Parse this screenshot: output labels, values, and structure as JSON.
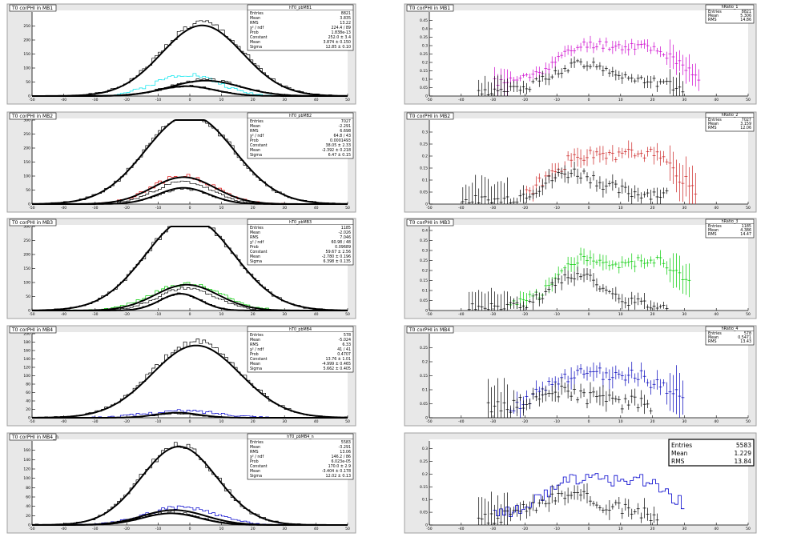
{
  "canvas": {
    "background": "#ffffff",
    "frame_color": "#e8e8e8",
    "axis_color": "#000000"
  },
  "chart_data": [
    {
      "type": "line",
      "title": "T0 corPHI in MB1",
      "hist_name": "hT0_pbMB1",
      "xlim": [
        -50,
        50
      ],
      "ylim": [
        0,
        300
      ],
      "x_ticks": [
        -50,
        -40,
        -30,
        -20,
        -10,
        0,
        10,
        20,
        30,
        40,
        50
      ],
      "y_ticks": [
        0,
        50,
        100,
        150,
        200,
        250
      ],
      "stats": [
        {
          "label": "Entries",
          "value": "8821"
        },
        {
          "label": "Mean",
          "value": "3.835"
        },
        {
          "label": "RMS",
          "value": "13.22"
        },
        {
          "label": "χ² / ndf",
          "value": "224.4 / 89"
        },
        {
          "label": "Prob",
          "value": "1.838e-13"
        },
        {
          "label": "Constant",
          "value": "252.0 ± 3.4"
        },
        {
          "label": "Mean",
          "value": "3.874 ± 0.150"
        },
        {
          "label": "Sigma",
          "value": "12.85 ± 0.10"
        }
      ],
      "series": [
        {
          "kind": "gauss",
          "color": "#000000",
          "amp": 262,
          "mean": 3.9,
          "sigma": 12.9,
          "noise": 12,
          "seed": 1
        },
        {
          "kind": "gauss",
          "color": "#00e5ee",
          "amp": 78,
          "mean": -1,
          "sigma": 10,
          "noise": 8,
          "seed": 2
        },
        {
          "kind": "gauss",
          "color": "#000000",
          "amp": 58,
          "mean": 5,
          "sigma": 11,
          "noise": 5,
          "seed": 3
        },
        {
          "kind": "gauss",
          "color": "#000000",
          "amp": 36,
          "mean": -1,
          "sigma": 9,
          "noise": 4,
          "seed": 4
        }
      ],
      "fits": [
        {
          "amp": 252,
          "mean": 3.9,
          "sigma": 12.85
        },
        {
          "amp": 55,
          "mean": 5,
          "sigma": 11
        },
        {
          "amp": 35,
          "mean": -1,
          "sigma": 9
        }
      ]
    },
    {
      "type": "scatter",
      "title": "T0 corPHI in MB1",
      "hist_name": "hRatio_1",
      "xlim": [
        -50,
        50
      ],
      "ylim": [
        0,
        0.5
      ],
      "x_ticks": [
        -50,
        -40,
        -30,
        -20,
        -10,
        0,
        10,
        20,
        30,
        40,
        50
      ],
      "y_ticks": [
        0,
        0.05,
        0.1,
        0.15,
        0.2,
        0.25,
        0.3,
        0.35,
        0.4,
        0.45
      ],
      "stats": [
        {
          "label": "Entries",
          "value": "8821"
        },
        {
          "label": "Mean",
          "value": "5.306"
        },
        {
          "label": "RMS",
          "value": "14.86"
        }
      ],
      "series": [
        {
          "kind": "ratio",
          "color": "#cc00cc",
          "base": 0.2,
          "amp": 0.22,
          "mean": 0,
          "sigma": 10,
          "second": 0.18,
          "smean": 20,
          "ssigma": 8,
          "range": [
            -30,
            35
          ],
          "seed": 11
        },
        {
          "kind": "ratio",
          "color": "#000000",
          "base": 0.05,
          "amp": 0.17,
          "mean": -2,
          "sigma": 10,
          "second": 0.05,
          "smean": 20,
          "ssigma": 8,
          "range": [
            -35,
            30
          ],
          "seed": 12
        }
      ]
    },
    {
      "type": "line",
      "title": "T0 corPHI in MB2",
      "hist_name": "hT0_pbMB2",
      "xlim": [
        -50,
        50
      ],
      "ylim": [
        0,
        300
      ],
      "x_ticks": [
        -50,
        -40,
        -30,
        -20,
        -10,
        0,
        10,
        20,
        30,
        40,
        50
      ],
      "y_ticks": [
        0,
        50,
        100,
        150,
        200,
        250,
        300
      ],
      "stats": [
        {
          "label": "Entries",
          "value": "7027"
        },
        {
          "label": "Mean",
          "value": "-2.291"
        },
        {
          "label": "RMS",
          "value": "6.698"
        },
        {
          "label": "χ² / ndf",
          "value": "64.8 / 43"
        },
        {
          "label": "Prob",
          "value": "0.0001493"
        },
        {
          "label": "Constant",
          "value": "38.05 ± 2.33"
        },
        {
          "label": "Mean",
          "value": "-2.392 ± 0.218"
        },
        {
          "label": "Sigma",
          "value": "6.47 ± 0.15"
        }
      ],
      "series": [
        {
          "kind": "gauss",
          "color": "#000000",
          "amp": 320,
          "mean": 0,
          "sigma": 14,
          "noise": 12,
          "seed": 21
        },
        {
          "kind": "gauss",
          "color": "#dd0000",
          "amp": 100,
          "mean": -2,
          "sigma": 10,
          "noise": 8,
          "seed": 22
        },
        {
          "kind": "gauss",
          "color": "#000000",
          "amp": 80,
          "mean": -2,
          "sigma": 9,
          "noise": 5,
          "seed": 23
        },
        {
          "kind": "gauss",
          "color": "#000000",
          "amp": 55,
          "mean": -2,
          "sigma": 8,
          "noise": 4,
          "seed": 24
        }
      ],
      "fits": [
        {
          "amp": 318,
          "mean": 0,
          "sigma": 14
        },
        {
          "amp": 96,
          "mean": -2,
          "sigma": 10
        },
        {
          "amp": 58,
          "mean": -2,
          "sigma": 8
        }
      ]
    },
    {
      "type": "scatter",
      "title": "T0 corPHI in MB2",
      "hist_name": "hRatio_2",
      "xlim": [
        -50,
        50
      ],
      "ylim": [
        0,
        0.35
      ],
      "x_ticks": [
        -50,
        -40,
        -30,
        -20,
        -10,
        0,
        10,
        20,
        30,
        40,
        50
      ],
      "y_ticks": [
        0,
        0.05,
        0.1,
        0.15,
        0.2,
        0.25,
        0.3
      ],
      "stats": [
        {
          "label": "Entries",
          "value": "7027"
        },
        {
          "label": "Mean",
          "value": "3.159"
        },
        {
          "label": "RMS",
          "value": "12.06"
        }
      ],
      "series": [
        {
          "kind": "ratio",
          "color": "#cc2222",
          "base": 0.06,
          "amp": 0.16,
          "mean": -3,
          "sigma": 9,
          "second": 0.18,
          "smean": 18,
          "ssigma": 9,
          "range": [
            -20,
            34
          ],
          "seed": 31
        },
        {
          "kind": "ratio",
          "color": "#000000",
          "base": 0.03,
          "amp": 0.12,
          "mean": -5,
          "sigma": 9,
          "second": 0.03,
          "smean": 20,
          "ssigma": 8,
          "range": [
            -40,
            25
          ],
          "seed": 32
        }
      ]
    },
    {
      "type": "line",
      "title": "T0 corPHI in MB3",
      "hist_name": "hT0_pbMB3",
      "xlim": [
        -50,
        50
      ],
      "ylim": [
        0,
        300
      ],
      "x_ticks": [
        -50,
        -40,
        -30,
        -20,
        -10,
        0,
        10,
        20,
        30,
        40,
        50
      ],
      "y_ticks": [
        0,
        50,
        100,
        150,
        200,
        250,
        300
      ],
      "stats": [
        {
          "label": "Entries",
          "value": "1185"
        },
        {
          "label": "Mean",
          "value": "-2.026"
        },
        {
          "label": "RMS",
          "value": "7.046"
        },
        {
          "label": "χ² / ndf",
          "value": "60.98 / 48"
        },
        {
          "label": "Prob",
          "value": "0.09689"
        },
        {
          "label": "Constant",
          "value": "59.67 ± 2.56"
        },
        {
          "label": "Mean",
          "value": "-2.780 ± 0.196"
        },
        {
          "label": "Sigma",
          "value": "6.398 ± 0.135"
        }
      ],
      "series": [
        {
          "kind": "gauss",
          "color": "#000000",
          "amp": 330,
          "mean": 0,
          "sigma": 14,
          "noise": 12,
          "seed": 41
        },
        {
          "kind": "gauss",
          "color": "#00cc00",
          "amp": 95,
          "mean": -1,
          "sigma": 11,
          "noise": 7,
          "seed": 42
        },
        {
          "kind": "gauss",
          "color": "#000000",
          "amp": 80,
          "mean": -1,
          "sigma": 9,
          "noise": 5,
          "seed": 43
        },
        {
          "kind": "gauss",
          "color": "#000000",
          "amp": 60,
          "mean": -3,
          "sigma": 6.5,
          "noise": 4,
          "seed": 44
        }
      ],
      "fits": [
        {
          "amp": 330,
          "mean": 0,
          "sigma": 14
        },
        {
          "amp": 92,
          "mean": -1,
          "sigma": 10
        },
        {
          "amp": 60,
          "mean": -3,
          "sigma": 6.4
        }
      ]
    },
    {
      "type": "scatter",
      "title": "T0 corPHI in MB3",
      "hist_name": "hRatio_3",
      "xlim": [
        -50,
        50
      ],
      "ylim": [
        0,
        0.42
      ],
      "x_ticks": [
        -50,
        -40,
        -30,
        -20,
        -10,
        0,
        10,
        20,
        30,
        40,
        50
      ],
      "y_ticks": [
        0,
        0.05,
        0.1,
        0.15,
        0.2,
        0.25,
        0.3,
        0.35,
        0.4
      ],
      "stats": [
        {
          "label": "Entries",
          "value": "1185"
        },
        {
          "label": "Mean",
          "value": "4.386"
        },
        {
          "label": "RMS",
          "value": "14.47"
        }
      ],
      "series": [
        {
          "kind": "ratio",
          "color": "#00cc00",
          "base": 0.08,
          "amp": 0.22,
          "mean": -2,
          "sigma": 8,
          "second": 0.22,
          "smean": 20,
          "ssigma": 9,
          "range": [
            -25,
            32
          ],
          "seed": 51
        },
        {
          "kind": "ratio",
          "color": "#000000",
          "base": 0.03,
          "amp": 0.17,
          "mean": -4,
          "sigma": 8,
          "second": 0.02,
          "smean": 20,
          "ssigma": 6,
          "range": [
            -38,
            25
          ],
          "seed": 52
        }
      ]
    },
    {
      "type": "line",
      "title": "T0 corPHI in MB4",
      "hist_name": "hT0_pbMB4",
      "xlim": [
        -50,
        50
      ],
      "ylim": [
        0,
        200
      ],
      "x_ticks": [
        -50,
        -40,
        -30,
        -20,
        -10,
        0,
        10,
        20,
        30,
        40,
        50
      ],
      "y_ticks": [
        0,
        20,
        40,
        60,
        80,
        100,
        120,
        140,
        160,
        180,
        200
      ],
      "stats": [
        {
          "label": "Entries",
          "value": "578"
        },
        {
          "label": "Mean",
          "value": "-5.024"
        },
        {
          "label": "RMS",
          "value": "6.33"
        },
        {
          "label": "χ² / ndf",
          "value": "41 / 41"
        },
        {
          "label": "Prob",
          "value": "0.4707"
        },
        {
          "label": "Constant",
          "value": "13.76 ± 1.01"
        },
        {
          "label": "Mean",
          "value": "-4.999 ± 0.465"
        },
        {
          "label": "Sigma",
          "value": "5.662 ± 0.405"
        }
      ],
      "series": [
        {
          "kind": "gauss",
          "color": "#000000",
          "amp": 180,
          "mean": 2,
          "sigma": 14,
          "noise": 8,
          "seed": 61
        },
        {
          "kind": "gauss",
          "color": "#0000cc",
          "amp": 16,
          "mean": -2,
          "sigma": 12,
          "noise": 4,
          "seed": 62
        },
        {
          "kind": "gauss",
          "color": "#000000",
          "amp": 10,
          "mean": -4,
          "sigma": 7,
          "noise": 2,
          "seed": 63
        }
      ],
      "fits": [
        {
          "amp": 172,
          "mean": 2,
          "sigma": 14
        },
        {
          "amp": 12,
          "mean": -4,
          "sigma": 7
        }
      ]
    },
    {
      "type": "scatter",
      "title": "T0 corPHI in MB4",
      "hist_name": "hRatio_4",
      "xlim": [
        -50,
        50
      ],
      "ylim": [
        0,
        0.3
      ],
      "x_ticks": [
        -50,
        -40,
        -30,
        -20,
        -10,
        0,
        10,
        20,
        30,
        40,
        50
      ],
      "y_ticks": [
        0,
        0.05,
        0.1,
        0.15,
        0.2,
        0.25
      ],
      "stats": [
        {
          "label": "Entries",
          "value": "578"
        },
        {
          "label": "Mean",
          "value": "0.5471"
        },
        {
          "label": "RMS",
          "value": "13.43"
        }
      ],
      "series": [
        {
          "kind": "ratio",
          "color": "#0000bb",
          "base": 0.1,
          "amp": 0.1,
          "mean": -4,
          "sigma": 9,
          "second": 0.1,
          "smean": 15,
          "ssigma": 9,
          "range": [
            -25,
            30
          ],
          "seed": 71
        },
        {
          "kind": "ratio",
          "color": "#000000",
          "base": 0.08,
          "amp": 0.06,
          "mean": -8,
          "sigma": 9,
          "second": 0.02,
          "smean": 15,
          "ssigma": 6,
          "range": [
            -32,
            20
          ],
          "seed": 72
        }
      ]
    },
    {
      "type": "line",
      "title": "T0 corPHI in MB4_n",
      "hist_name": "hT0_pbMB4_n",
      "xlim": [
        -50,
        50
      ],
      "ylim": [
        0,
        180
      ],
      "x_ticks": [
        -50,
        -40,
        -30,
        -20,
        -10,
        0,
        10,
        20,
        30,
        40,
        50
      ],
      "y_ticks": [
        0,
        20,
        40,
        60,
        80,
        100,
        120,
        140,
        160
      ],
      "stats": [
        {
          "label": "Entries",
          "value": "5583"
        },
        {
          "label": "Mean",
          "value": "-3.291"
        },
        {
          "label": "RMS",
          "value": "13.06"
        },
        {
          "label": "χ² / ndf",
          "value": "146.2 / 86"
        },
        {
          "label": "Prob",
          "value": "6.023e-05"
        },
        {
          "label": "Constant",
          "value": "170.0 ± 2.9"
        },
        {
          "label": "Mean",
          "value": "-3.404 ± 0.178"
        },
        {
          "label": "Sigma",
          "value": "12.02 ± 0.13"
        }
      ],
      "series": [
        {
          "kind": "gauss",
          "color": "#000000",
          "amp": 170,
          "mean": -3.4,
          "sigma": 12,
          "noise": 8,
          "seed": 81
        },
        {
          "kind": "gauss",
          "color": "#0000cc",
          "amp": 38,
          "mean": -3,
          "sigma": 11,
          "noise": 4,
          "seed": 82
        },
        {
          "kind": "gauss",
          "color": "#000000",
          "amp": 28,
          "mean": -6,
          "sigma": 9,
          "noise": 3,
          "seed": 83
        }
      ],
      "fits": [
        {
          "amp": 168,
          "mean": -3.4,
          "sigma": 12
        },
        {
          "amp": 32,
          "mean": -5,
          "sigma": 10
        },
        {
          "amp": 25,
          "mean": -6,
          "sigma": 9
        }
      ]
    },
    {
      "type": "scatter",
      "title": "",
      "hist_name": "",
      "xlim": [
        -50,
        50
      ],
      "ylim": [
        0,
        0.33
      ],
      "x_ticks": [
        -50,
        -40,
        -30,
        -20,
        -10,
        0,
        10,
        20,
        30,
        40,
        50
      ],
      "y_ticks": [
        0,
        0.05,
        0.1,
        0.15,
        0.2,
        0.25,
        0.3
      ],
      "stats": [
        {
          "label": "Entries",
          "value": "5583"
        },
        {
          "label": "Mean",
          "value": "1.229"
        },
        {
          "label": "RMS",
          "value": "13.84"
        }
      ],
      "series": [
        {
          "kind": "steps",
          "color": "#0000cc",
          "base": 0.1,
          "amp": 0.14,
          "mean": -3,
          "sigma": 10,
          "second": 0.12,
          "smean": 18,
          "ssigma": 8,
          "range": [
            -30,
            30
          ],
          "seed": 91
        },
        {
          "kind": "ratio",
          "color": "#000000",
          "base": 0.05,
          "amp": 0.1,
          "mean": -6,
          "sigma": 10,
          "second": 0.02,
          "smean": 15,
          "ssigma": 6,
          "range": [
            -35,
            22
          ],
          "seed": 92
        }
      ]
    }
  ]
}
